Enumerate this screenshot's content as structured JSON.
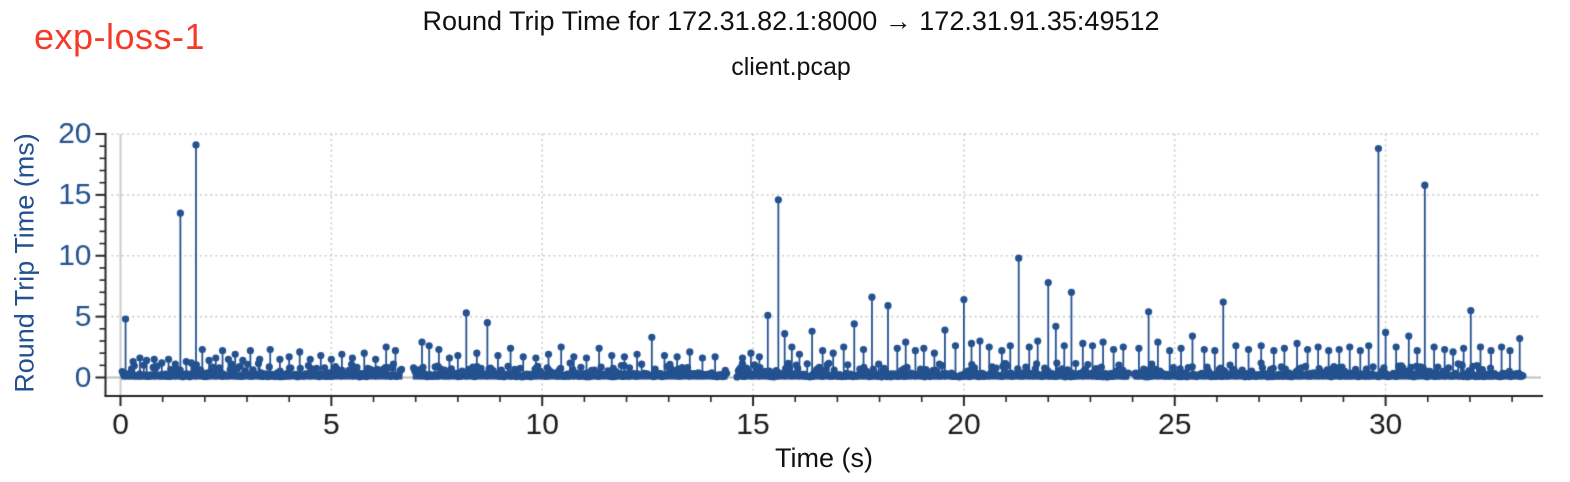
{
  "annotation": {
    "label": "exp-loss-1",
    "color": "#f43b2a"
  },
  "header": {
    "title": "Round Trip Time for 172.31.82.1:8000 → 172.31.91.35:49512",
    "subtitle": "client.pcap"
  },
  "chart_data": {
    "type": "scatter",
    "style": "stem",
    "title": "Round Trip Time for 172.31.82.1:8000 → 172.31.91.35:49512",
    "subtitle": "client.pcap",
    "annotation": "exp-loss-1",
    "xlabel": "Time (s)",
    "ylabel": "Round Trip Time (ms)",
    "xlim": [
      -0.36,
      33.7
    ],
    "ylim": [
      -1.4,
      20
    ],
    "x_ticks": [
      0,
      5,
      10,
      15,
      20,
      25,
      30
    ],
    "y_ticks": [
      0,
      5,
      10,
      15,
      20
    ],
    "x_minor_step": 1,
    "y_minor_step": 1,
    "grid": {
      "style": "dotted",
      "color": "#c9c9c9",
      "solid_line_at_x0": true,
      "baseline_at_y0": true
    },
    "legend": "none",
    "colors": {
      "stem": "#24518f",
      "marker": "#24518f",
      "y_axis_text": "#24518f",
      "x_axis_text": "#1a1a1a",
      "spine": "#262626",
      "grid": "#c9c9c9",
      "zero_x_line": "#cccccc",
      "baseline_line": "#bfbfbf",
      "annotation": "#f43b2a"
    },
    "spikes": [
      [
        0.12,
        4.8
      ],
      [
        0.3,
        1.3
      ],
      [
        0.46,
        1.6
      ],
      [
        0.62,
        1.4
      ],
      [
        0.8,
        1.5
      ],
      [
        0.98,
        1.2
      ],
      [
        1.14,
        1.5
      ],
      [
        1.3,
        1.1
      ],
      [
        1.42,
        13.5
      ],
      [
        1.56,
        1.3
      ],
      [
        1.68,
        1.2
      ],
      [
        1.79,
        19.1
      ],
      [
        1.94,
        2.3
      ],
      [
        2.1,
        1.4
      ],
      [
        2.26,
        1.6
      ],
      [
        2.42,
        2.2
      ],
      [
        2.56,
        1.5
      ],
      [
        2.72,
        1.9
      ],
      [
        2.9,
        1.4
      ],
      [
        3.08,
        2.2
      ],
      [
        3.3,
        1.5
      ],
      [
        3.55,
        2.3
      ],
      [
        3.78,
        1.5
      ],
      [
        4.0,
        1.7
      ],
      [
        4.25,
        2.1
      ],
      [
        4.5,
        1.5
      ],
      [
        4.75,
        1.8
      ],
      [
        5.0,
        1.5
      ],
      [
        5.25,
        1.9
      ],
      [
        5.5,
        1.6
      ],
      [
        5.78,
        2.0
      ],
      [
        6.05,
        1.5
      ],
      [
        6.3,
        2.5
      ],
      [
        6.52,
        2.2
      ],
      [
        7.15,
        2.9
      ],
      [
        7.32,
        2.6
      ],
      [
        7.55,
        2.3
      ],
      [
        7.8,
        1.6
      ],
      [
        8.0,
        1.8
      ],
      [
        8.2,
        5.3
      ],
      [
        8.45,
        2.0
      ],
      [
        8.7,
        4.5
      ],
      [
        8.95,
        1.8
      ],
      [
        9.25,
        2.4
      ],
      [
        9.55,
        1.7
      ],
      [
        9.85,
        1.6
      ],
      [
        10.15,
        1.9
      ],
      [
        10.45,
        2.5
      ],
      [
        10.75,
        1.7
      ],
      [
        11.05,
        1.6
      ],
      [
        11.35,
        2.4
      ],
      [
        11.65,
        1.8
      ],
      [
        11.95,
        1.7
      ],
      [
        12.25,
        1.9
      ],
      [
        12.6,
        3.3
      ],
      [
        12.9,
        1.8
      ],
      [
        13.2,
        1.7
      ],
      [
        13.5,
        2.1
      ],
      [
        13.8,
        1.6
      ],
      [
        14.1,
        1.7
      ],
      [
        14.75,
        1.6
      ],
      [
        14.95,
        2.0
      ],
      [
        15.15,
        1.7
      ],
      [
        15.35,
        5.1
      ],
      [
        15.6,
        14.6
      ],
      [
        15.75,
        3.6
      ],
      [
        15.92,
        2.5
      ],
      [
        16.1,
        1.9
      ],
      [
        16.4,
        3.8
      ],
      [
        16.65,
        2.2
      ],
      [
        16.9,
        2.0
      ],
      [
        17.15,
        2.5
      ],
      [
        17.4,
        4.4
      ],
      [
        17.62,
        2.3
      ],
      [
        17.82,
        6.6
      ],
      [
        18.2,
        5.9
      ],
      [
        18.42,
        2.4
      ],
      [
        18.62,
        2.9
      ],
      [
        18.85,
        2.2
      ],
      [
        19.05,
        2.4
      ],
      [
        19.3,
        2.0
      ],
      [
        19.55,
        3.9
      ],
      [
        19.8,
        2.6
      ],
      [
        20.0,
        6.4
      ],
      [
        20.18,
        2.8
      ],
      [
        20.38,
        3.0
      ],
      [
        20.6,
        2.5
      ],
      [
        20.9,
        2.2
      ],
      [
        21.1,
        2.6
      ],
      [
        21.3,
        9.8
      ],
      [
        21.55,
        2.5
      ],
      [
        21.75,
        3.0
      ],
      [
        22.0,
        7.8
      ],
      [
        22.18,
        4.2
      ],
      [
        22.38,
        2.6
      ],
      [
        22.55,
        7.0
      ],
      [
        22.82,
        2.8
      ],
      [
        23.05,
        2.6
      ],
      [
        23.3,
        2.9
      ],
      [
        23.55,
        2.3
      ],
      [
        23.78,
        2.5
      ],
      [
        24.15,
        2.4
      ],
      [
        24.38,
        5.4
      ],
      [
        24.6,
        2.9
      ],
      [
        24.88,
        2.2
      ],
      [
        25.15,
        2.4
      ],
      [
        25.42,
        3.4
      ],
      [
        25.7,
        2.3
      ],
      [
        25.95,
        2.2
      ],
      [
        26.15,
        6.2
      ],
      [
        26.45,
        2.6
      ],
      [
        26.75,
        2.3
      ],
      [
        27.05,
        2.6
      ],
      [
        27.35,
        2.2
      ],
      [
        27.6,
        2.4
      ],
      [
        27.9,
        2.8
      ],
      [
        28.15,
        2.3
      ],
      [
        28.4,
        2.5
      ],
      [
        28.65,
        2.2
      ],
      [
        28.9,
        2.3
      ],
      [
        29.15,
        2.5
      ],
      [
        29.4,
        2.2
      ],
      [
        29.6,
        2.6
      ],
      [
        29.83,
        18.8
      ],
      [
        30.0,
        3.7
      ],
      [
        30.25,
        2.5
      ],
      [
        30.55,
        3.4
      ],
      [
        30.75,
        2.2
      ],
      [
        30.93,
        15.8
      ],
      [
        31.15,
        2.5
      ],
      [
        31.4,
        2.3
      ],
      [
        31.6,
        2.1
      ],
      [
        31.85,
        2.4
      ],
      [
        32.02,
        5.5
      ],
      [
        32.25,
        2.5
      ],
      [
        32.5,
        2.2
      ],
      [
        32.75,
        2.5
      ],
      [
        32.95,
        2.2
      ],
      [
        33.18,
        3.2
      ]
    ],
    "baseline": {
      "description": "dense RTT samples forming band near 0",
      "segments": [
        [
          0.04,
          6.68
        ],
        [
          6.95,
          14.38
        ],
        [
          14.62,
          23.92
        ],
        [
          24.04,
          33.27
        ]
      ],
      "step": 0.032,
      "value_range": [
        0.05,
        1.2
      ],
      "seed": 20
    },
    "gaps": [
      [
        6.68,
        6.95
      ],
      [
        14.38,
        14.62
      ],
      [
        23.92,
        24.04
      ]
    ]
  }
}
